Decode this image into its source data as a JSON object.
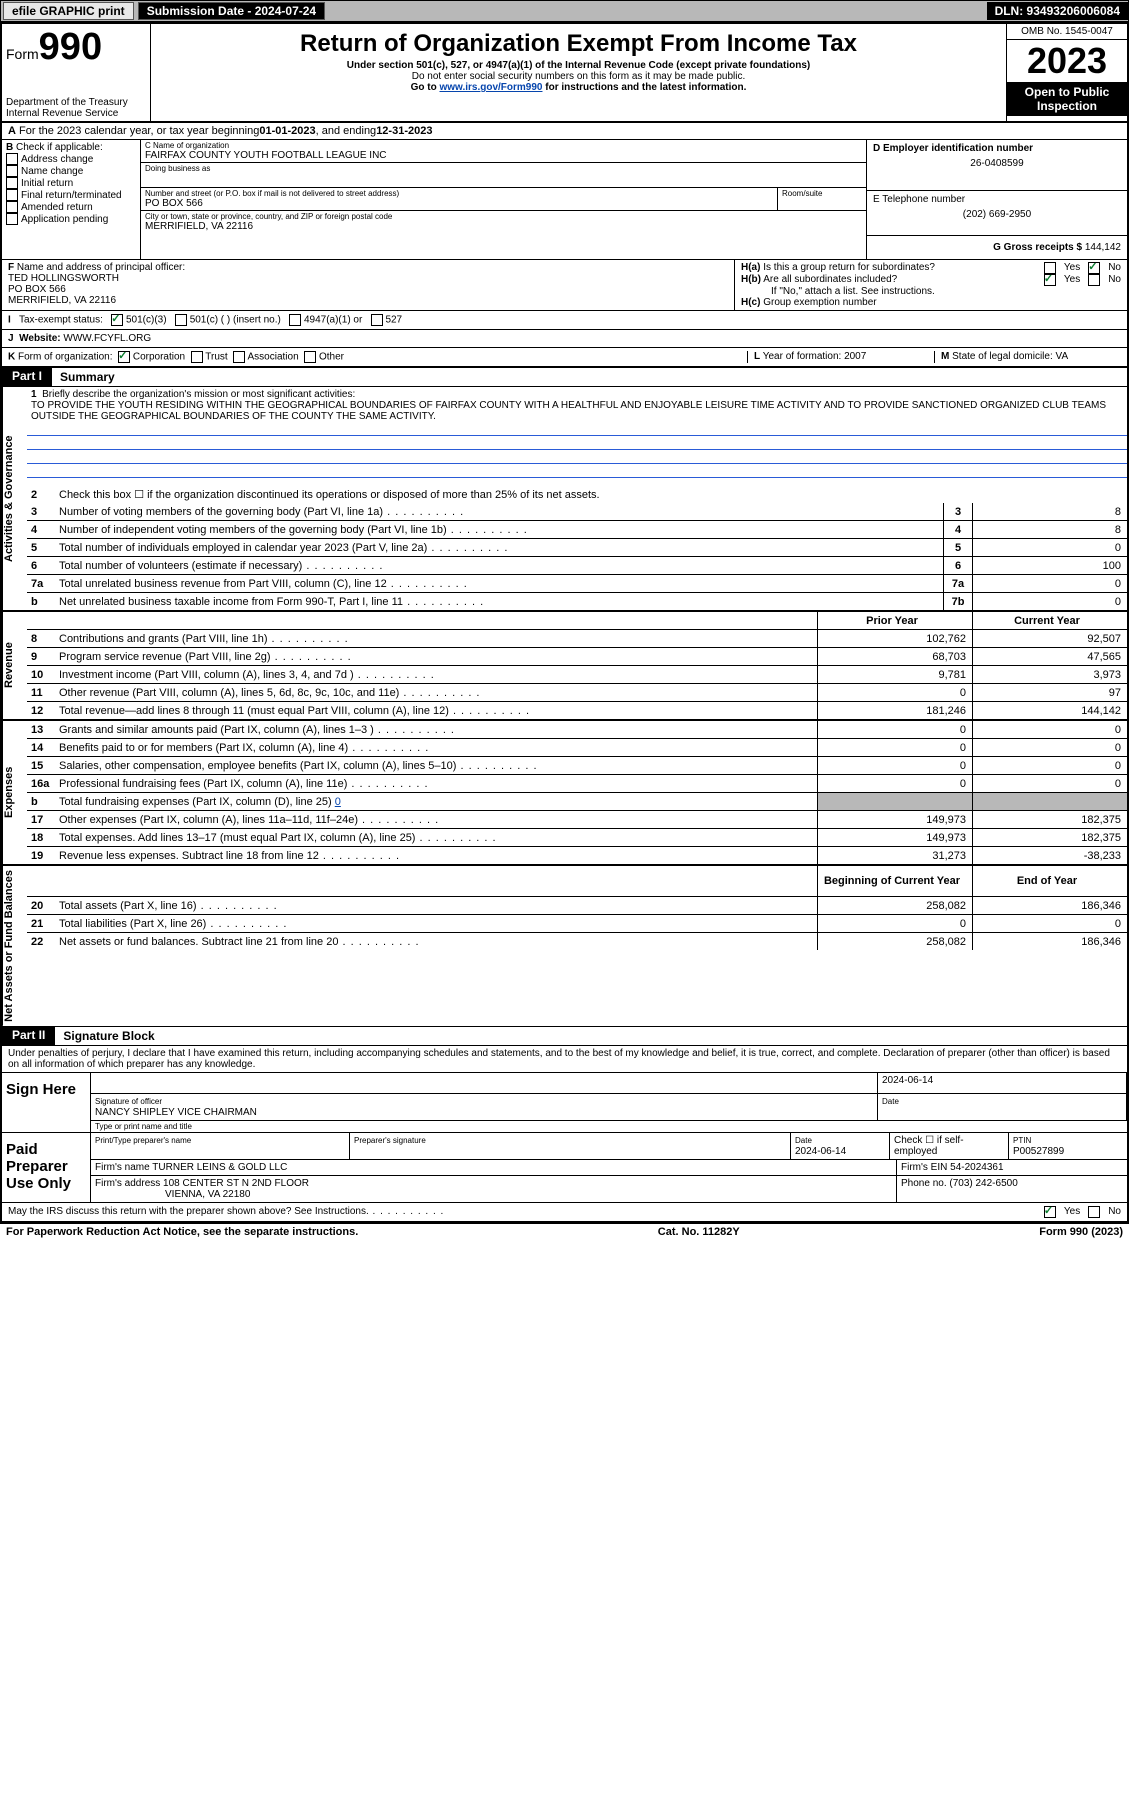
{
  "topbar": {
    "efile": "efile GRAPHIC print",
    "submission_label": "Submission Date - 2024-07-24",
    "dln_label": "DLN: 93493206006084"
  },
  "header": {
    "form_prefix": "Form",
    "form_number": "990",
    "dept": "Department of the Treasury",
    "irs": "Internal Revenue Service",
    "title": "Return of Organization Exempt From Income Tax",
    "sub1": "Under section 501(c), 527, or 4947(a)(1) of the Internal Revenue Code (except private foundations)",
    "sub2": "Do not enter social security numbers on this form as it may be made public.",
    "sub3_pre": "Go to ",
    "sub3_link": "www.irs.gov/Form990",
    "sub3_post": " for instructions and the latest information.",
    "omb": "OMB No. 1545-0047",
    "year": "2023",
    "inspection": "Open to Public Inspection"
  },
  "section_a": {
    "label": "A",
    "text_pre": "For the 2023 calendar year, or tax year beginning ",
    "begin": "01-01-2023",
    "mid": " , and ending ",
    "end": "12-31-2023"
  },
  "section_b": {
    "label": "B",
    "instr": "Check if applicable:",
    "items": [
      "Address change",
      "Name change",
      "Initial return",
      "Final return/terminated",
      "Amended return",
      "Application pending"
    ]
  },
  "section_c": {
    "name_label": "C Name of organization",
    "name": "FAIRFAX COUNTY YOUTH FOOTBALL LEAGUE INC",
    "dba_label": "Doing business as",
    "dba": "",
    "street_label": "Number and street (or P.O. box if mail is not delivered to street address)",
    "room_label": "Room/suite",
    "street": "PO BOX 566",
    "city_label": "City or town, state or province, country, and ZIP or foreign postal code",
    "city": "MERRIFIELD, VA  22116"
  },
  "section_d": {
    "ein_label": "D Employer identification number",
    "ein": "26-0408599",
    "phone_label": "E Telephone number",
    "phone": "(202) 669-2950",
    "gross_label": "G Gross receipts $",
    "gross": "144,142"
  },
  "section_f": {
    "label": "F",
    "text": "Name and address of principal officer:",
    "name": "TED HOLLINGSWORTH",
    "addr1": "PO BOX 566",
    "addr2": "MERRIFIELD, VA  22116"
  },
  "section_h": {
    "a_label": "H(a)",
    "a_text": "Is this a group return for subordinates?",
    "b_label": "H(b)",
    "b_text": "Are all subordinates included?",
    "note": "If \"No,\" attach a list. See instructions.",
    "c_label": "H(c)",
    "c_text": "Group exemption number ",
    "yes": "Yes",
    "no": "No"
  },
  "section_i": {
    "label": "I",
    "text": "Tax-exempt status:",
    "opts": [
      "501(c)(3)",
      "501(c) (  ) (insert no.)",
      "4947(a)(1) or",
      "527"
    ]
  },
  "section_j": {
    "label": "J",
    "text": "Website: ",
    "val": "WWW.FCYFL.ORG"
  },
  "section_k": {
    "label": "K",
    "text": "Form of organization:",
    "opts": [
      "Corporation",
      "Trust",
      "Association",
      "Other"
    ]
  },
  "section_l": {
    "label": "L",
    "text": "Year of formation: ",
    "val": "2007"
  },
  "section_m": {
    "label": "M",
    "text": "State of legal domicile: ",
    "val": "VA"
  },
  "part1": {
    "label": "Part I",
    "title": "Summary",
    "tab_governance": "Activities & Governance",
    "tab_revenue": "Revenue",
    "tab_expenses": "Expenses",
    "tab_netassets": "Net Assets or Fund Balances",
    "l1_label": "1",
    "l1_text": "Briefly describe the organization's mission or most significant activities:",
    "mission": "TO PROVIDE THE YOUTH RESIDING WITHIN THE GEOGRAPHICAL BOUNDARIES OF FAIRFAX COUNTY WITH A HEALTHFUL AND ENJOYABLE LEISURE TIME ACTIVITY AND TO PROVIDE SANCTIONED ORGANIZED CLUB TEAMS OUTSIDE THE GEOGRAPHICAL BOUNDARIES OF THE COUNTY THE SAME ACTIVITY.",
    "l2_text": "Check this box  ☐  if the organization discontinued its operations or disposed of more than 25% of its net assets.",
    "prior_header": "Prior Year",
    "current_header": "Current Year",
    "begin_header": "Beginning of Current Year",
    "end_header": "End of Year",
    "gov_lines": [
      {
        "n": "3",
        "t": "Number of voting members of the governing body (Part VI, line 1a)",
        "b": "3",
        "v": "8"
      },
      {
        "n": "4",
        "t": "Number of independent voting members of the governing body (Part VI, line 1b)",
        "b": "4",
        "v": "8"
      },
      {
        "n": "5",
        "t": "Total number of individuals employed in calendar year 2023 (Part V, line 2a)",
        "b": "5",
        "v": "0"
      },
      {
        "n": "6",
        "t": "Total number of volunteers (estimate if necessary)",
        "b": "6",
        "v": "100"
      },
      {
        "n": "7a",
        "t": "Total unrelated business revenue from Part VIII, column (C), line 12",
        "b": "7a",
        "v": "0"
      },
      {
        "n": "b",
        "t": "Net unrelated business taxable income from Form 990-T, Part I, line 11",
        "b": "7b",
        "v": "0"
      }
    ],
    "rev_lines": [
      {
        "n": "8",
        "t": "Contributions and grants (Part VIII, line 1h)",
        "p": "102,762",
        "c": "92,507"
      },
      {
        "n": "9",
        "t": "Program service revenue (Part VIII, line 2g)",
        "p": "68,703",
        "c": "47,565"
      },
      {
        "n": "10",
        "t": "Investment income (Part VIII, column (A), lines 3, 4, and 7d )",
        "p": "9,781",
        "c": "3,973"
      },
      {
        "n": "11",
        "t": "Other revenue (Part VIII, column (A), lines 5, 6d, 8c, 9c, 10c, and 11e)",
        "p": "0",
        "c": "97"
      },
      {
        "n": "12",
        "t": "Total revenue—add lines 8 through 11 (must equal Part VIII, column (A), line 12)",
        "p": "181,246",
        "c": "144,142"
      }
    ],
    "exp_lines": [
      {
        "n": "13",
        "t": "Grants and similar amounts paid (Part IX, column (A), lines 1–3 )",
        "p": "0",
        "c": "0"
      },
      {
        "n": "14",
        "t": "Benefits paid to or for members (Part IX, column (A), line 4)",
        "p": "0",
        "c": "0"
      },
      {
        "n": "15",
        "t": "Salaries, other compensation, employee benefits (Part IX, column (A), lines 5–10)",
        "p": "0",
        "c": "0"
      },
      {
        "n": "16a",
        "t": "Professional fundraising fees (Part IX, column (A), line 11e)",
        "p": "0",
        "c": "0"
      }
    ],
    "l16b_text": "Total fundraising expenses (Part IX, column (D), line 25) ",
    "l16b_val": "0",
    "exp_lines2": [
      {
        "n": "17",
        "t": "Other expenses (Part IX, column (A), lines 11a–11d, 11f–24e)",
        "p": "149,973",
        "c": "182,375"
      },
      {
        "n": "18",
        "t": "Total expenses. Add lines 13–17 (must equal Part IX, column (A), line 25)",
        "p": "149,973",
        "c": "182,375"
      },
      {
        "n": "19",
        "t": "Revenue less expenses. Subtract line 18 from line 12",
        "p": "31,273",
        "c": "-38,233"
      }
    ],
    "net_lines": [
      {
        "n": "20",
        "t": "Total assets (Part X, line 16)",
        "p": "258,082",
        "c": "186,346"
      },
      {
        "n": "21",
        "t": "Total liabilities (Part X, line 26)",
        "p": "0",
        "c": "0"
      },
      {
        "n": "22",
        "t": "Net assets or fund balances. Subtract line 21 from line 20",
        "p": "258,082",
        "c": "186,346"
      }
    ]
  },
  "part2": {
    "label": "Part II",
    "title": "Signature Block",
    "penalty": "Under penalties of perjury, I declare that I have examined this return, including accompanying schedules and statements, and to the best of my knowledge and belief, it is true, correct, and complete. Declaration of preparer (other than officer) is based on all information of which preparer has any knowledge."
  },
  "sign": {
    "here": "Sign Here",
    "sig_label": "Signature of officer",
    "name": "NANCY SHIPLEY  VICE CHAIRMAN",
    "type_label": "Type or print name and title",
    "date_label": "Date",
    "date": "2024-06-14"
  },
  "preparer": {
    "here": "Paid Preparer Use Only",
    "print_label": "Print/Type preparer's name",
    "sig_label": "Preparer's signature",
    "date_label": "Date",
    "date": "2024-06-14",
    "check_label": "Check ☐ if self-employed",
    "ptin_label": "PTIN",
    "ptin": "P00527899",
    "firm_name_label": "Firm's name  ",
    "firm_name": "TURNER LEINS & GOLD LLC",
    "firm_ein_label": "Firm's EIN  ",
    "firm_ein": "54-2024361",
    "firm_addr_label": "Firm's address ",
    "firm_addr1": "108 CENTER ST N 2ND FLOOR",
    "firm_addr2": "VIENNA, VA  22180",
    "phone_label": "Phone no. ",
    "phone": "(703) 242-6500"
  },
  "discuss": {
    "text": "May the IRS discuss this return with the preparer shown above? See Instructions.",
    "yes": "Yes",
    "no": "No"
  },
  "footer": {
    "left": "For Paperwork Reduction Act Notice, see the separate instructions.",
    "mid": "Cat. No. 11282Y",
    "right": "Form 990 (2023)"
  }
}
